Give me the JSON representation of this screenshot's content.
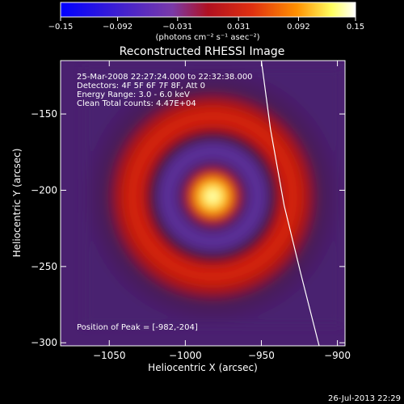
{
  "chart_data": {
    "type": "heatmap",
    "title": "Reconstructed RHESSI Image",
    "xlabel": "Heliocentric X (arcsec)",
    "ylabel": "Heliocentric Y (arcsec)",
    "xlim": [
      -1082,
      -895
    ],
    "ylim": [
      -302,
      -115
    ],
    "x_ticks": [
      {
        "v": -1050,
        "label": "−1050"
      },
      {
        "v": -1000,
        "label": "−1000"
      },
      {
        "v": -950,
        "label": "−950"
      },
      {
        "v": -900,
        "label": "−900"
      }
    ],
    "y_ticks": [
      {
        "v": -150,
        "label": "−150"
      },
      {
        "v": -200,
        "label": "−200"
      },
      {
        "v": -250,
        "label": "−250"
      },
      {
        "v": -300,
        "label": "−300"
      }
    ],
    "colorbar": {
      "min": -0.15,
      "max": 0.15,
      "ticks": [
        {
          "v": -0.15,
          "label": "−0.15"
        },
        {
          "v": -0.092,
          "label": "−0.092"
        },
        {
          "v": -0.031,
          "label": "−0.031"
        },
        {
          "v": 0.031,
          "label": "0.031"
        },
        {
          "v": 0.092,
          "label": "0.092"
        },
        {
          "v": 0.15,
          "label": "0.15"
        }
      ],
      "unit_label": "(photons cm⁻² s⁻¹ asec⁻²)",
      "colors": [
        "#0000ff",
        "#7a3aa8",
        "#c01010",
        "#ff8a00",
        "#ffff60",
        "#ffffff"
      ]
    },
    "annotations": [
      "25-Mar-2008 22:27:24.000 to 22:32:38.000",
      "Detectors: 4F 5F 6F 7F 8F, Att 0",
      "Energy Range: 3.0 - 6.0 keV",
      "Clean     Total counts: 4.47E+04"
    ],
    "peak_label": "Position of Peak = [-982,-204]",
    "peak": {
      "x": -982,
      "y": -204
    },
    "emission_features": [
      {
        "name": "core-peak",
        "x": -982,
        "y": -204,
        "radius_arcsec": 20,
        "level": 0.15
      },
      {
        "name": "purple-halo",
        "x": -982,
        "y": -204,
        "radius_arcsec": 50,
        "level": 0.0
      },
      {
        "name": "red-ring",
        "x": -982,
        "y": -204,
        "radius_arcsec": 78,
        "level": 0.05
      }
    ],
    "limb_curve": [
      {
        "x": -950,
        "y": -115
      },
      {
        "x": -944,
        "y": -160
      },
      {
        "x": -935,
        "y": -210
      },
      {
        "x": -924,
        "y": -255
      },
      {
        "x": -912,
        "y": -302
      }
    ]
  },
  "footer": {
    "timestamp": "26-Jul-2013 22:29"
  },
  "colors": {
    "background": "#000000",
    "axes": "#ffffff",
    "limb": "#ffffff"
  }
}
